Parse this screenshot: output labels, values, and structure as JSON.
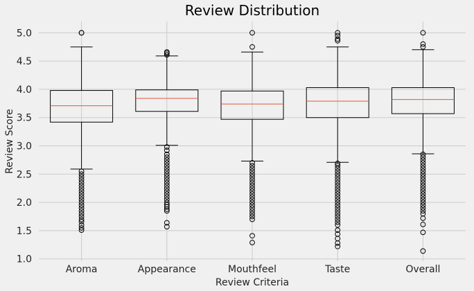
{
  "chart_data": {
    "type": "boxplot",
    "title": "Review Distribution",
    "xlabel": "Review Criteria",
    "ylabel": "Review Score",
    "ylim": [
      0.96,
      5.2
    ],
    "yticks": [
      1.0,
      1.5,
      2.0,
      2.5,
      3.0,
      3.5,
      4.0,
      4.5,
      5.0
    ],
    "grid": true,
    "colors": {
      "background": "#f0f0f0",
      "grid": "#cbcbcb",
      "median": "#e5553b",
      "box": "#000000"
    },
    "categories": [
      "Aroma",
      "Appearance",
      "Mouthfeel",
      "Taste",
      "Overall"
    ],
    "boxes": [
      {
        "name": "Aroma",
        "whislo": 2.59,
        "q1": 3.42,
        "med": 3.71,
        "q3": 3.98,
        "whishi": 4.75,
        "fliers": [
          5.0,
          5.0,
          2.55,
          2.5,
          2.45,
          2.4,
          2.35,
          2.3,
          2.25,
          2.2,
          2.15,
          2.1,
          2.05,
          2.0,
          1.95,
          1.9,
          1.85,
          1.8,
          1.75,
          1.7,
          1.66,
          1.6,
          1.55,
          1.51
        ]
      },
      {
        "name": "Appearance",
        "whislo": 3.01,
        "q1": 3.61,
        "med": 3.84,
        "q3": 3.99,
        "whishi": 4.59,
        "fliers": [
          4.66,
          4.64,
          4.61,
          2.98,
          2.92,
          2.85,
          2.8,
          2.75,
          2.7,
          2.65,
          2.6,
          2.55,
          2.5,
          2.45,
          2.4,
          2.35,
          2.3,
          2.25,
          2.2,
          2.15,
          2.1,
          2.05,
          2.0,
          1.96,
          1.92,
          1.88,
          1.85,
          1.64,
          1.57
        ]
      },
      {
        "name": "Mouthfeel",
        "whislo": 2.73,
        "q1": 3.47,
        "med": 3.74,
        "q3": 3.97,
        "whishi": 4.66,
        "fliers": [
          5.0,
          4.75,
          2.7,
          2.65,
          2.6,
          2.55,
          2.5,
          2.45,
          2.4,
          2.35,
          2.3,
          2.25,
          2.2,
          2.15,
          2.1,
          2.05,
          2.0,
          1.95,
          1.9,
          1.85,
          1.8,
          1.75,
          1.7,
          1.41,
          1.29
        ]
      },
      {
        "name": "Taste",
        "whislo": 2.71,
        "q1": 3.5,
        "med": 3.79,
        "q3": 4.03,
        "whishi": 4.75,
        "fliers": [
          5.0,
          4.95,
          4.89,
          4.86,
          2.69,
          2.65,
          2.6,
          2.55,
          2.5,
          2.45,
          2.4,
          2.35,
          2.3,
          2.25,
          2.2,
          2.15,
          2.1,
          2.05,
          2.0,
          1.95,
          1.9,
          1.85,
          1.8,
          1.75,
          1.7,
          1.65,
          1.6,
          1.51,
          1.44,
          1.36,
          1.28,
          1.22
        ]
      },
      {
        "name": "Overall",
        "whislo": 2.86,
        "q1": 3.57,
        "med": 3.82,
        "q3": 4.03,
        "whishi": 4.7,
        "fliers": [
          5.0,
          4.8,
          4.75,
          2.85,
          2.8,
          2.75,
          2.7,
          2.65,
          2.6,
          2.55,
          2.5,
          2.45,
          2.4,
          2.35,
          2.3,
          2.25,
          2.2,
          2.15,
          2.1,
          2.05,
          2.0,
          1.95,
          1.9,
          1.85,
          1.8,
          1.72,
          1.61,
          1.47,
          1.14
        ]
      }
    ]
  }
}
